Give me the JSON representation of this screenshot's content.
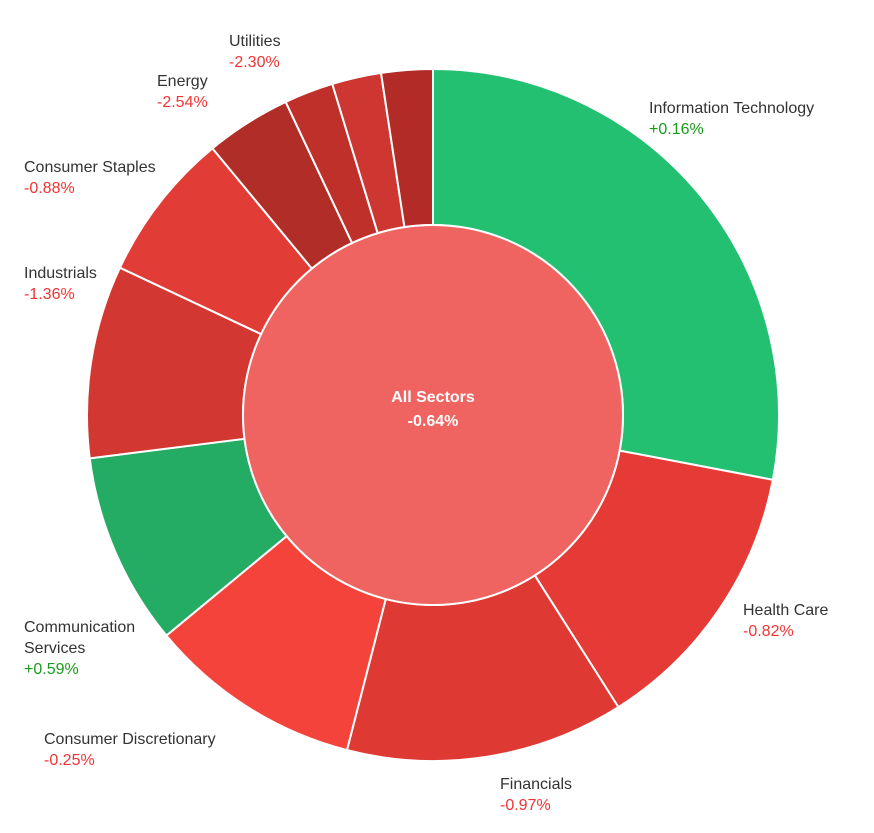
{
  "chart_data": {
    "type": "pie",
    "center": {
      "label": "All Sectors",
      "change": "-0.64%",
      "color": "#ef6461"
    },
    "series": [
      {
        "name": "Information Technology",
        "change": "+0.16%",
        "positive": true,
        "share": 0.28,
        "color": "#24c072"
      },
      {
        "name": "Health Care",
        "change": "-0.82%",
        "positive": false,
        "share": 0.13,
        "color": "#e53a35"
      },
      {
        "name": "Financials",
        "change": "-0.97%",
        "positive": false,
        "share": 0.13,
        "color": "#df3934"
      },
      {
        "name": "Consumer Discretionary",
        "change": "-0.25%",
        "positive": false,
        "share": 0.1,
        "color": "#f4433b"
      },
      {
        "name": "Communication Services",
        "change": "+0.59%",
        "positive": true,
        "share": 0.09,
        "color": "#25ac64"
      },
      {
        "name": "Industrials",
        "change": "-1.36%",
        "positive": false,
        "share": 0.09,
        "color": "#d33731"
      },
      {
        "name": "Consumer Staples",
        "change": "-0.88%",
        "positive": false,
        "share": 0.07,
        "color": "#e23c37"
      },
      {
        "name": "Energy",
        "change": "-2.54%",
        "positive": false,
        "share": 0.04,
        "color": "#b12d28"
      },
      {
        "name": "",
        "change": "",
        "positive": false,
        "share": 0.023,
        "color": "#bf302b"
      },
      {
        "name": "",
        "change": "",
        "positive": false,
        "share": 0.023,
        "color": "#cd3631"
      },
      {
        "name": "Utilities",
        "change": "-2.30%",
        "positive": false,
        "share": 0.024,
        "color": "#b32b27"
      }
    ],
    "colors": {
      "positive_text": "#1a9a1a",
      "negative_text": "#f03434"
    }
  }
}
